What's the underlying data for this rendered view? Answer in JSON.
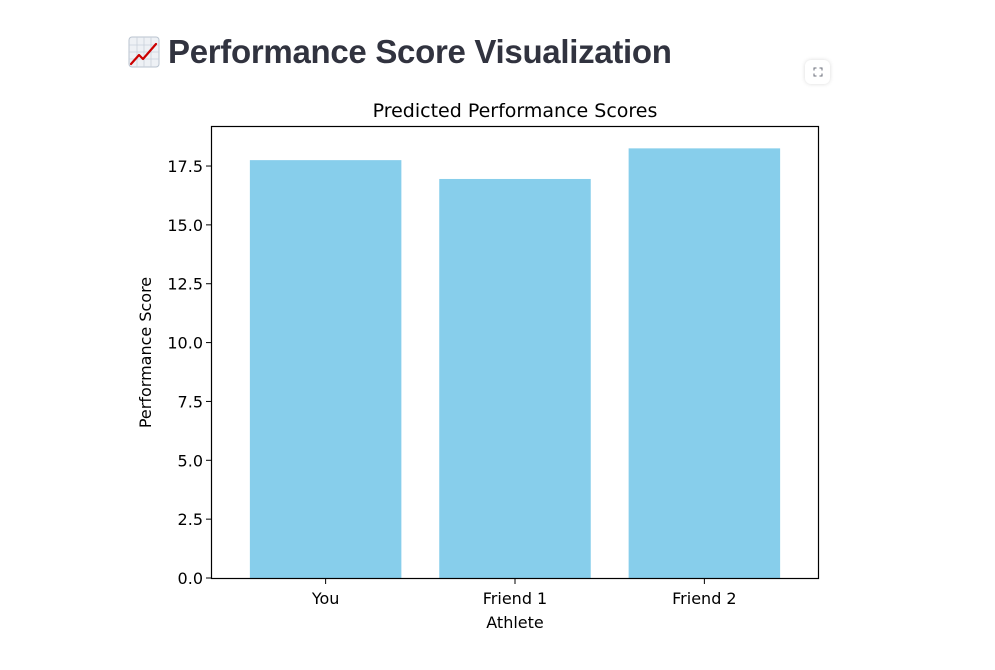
{
  "header": {
    "title": "Performance Score Visualization",
    "icon": "chart-increasing-icon"
  },
  "toolbar": {
    "fullscreen_icon": "fullscreen-icon"
  },
  "colors": {
    "bar": "#87ceeb",
    "title_text": "#31333f",
    "icon_line": "#cc0000"
  },
  "chart_data": {
    "type": "bar",
    "title": "Predicted Performance Scores",
    "xlabel": "Athlete",
    "ylabel": "Performance Score",
    "categories": [
      "You",
      "Friend 1",
      "Friend 2"
    ],
    "values": [
      17.75,
      16.95,
      18.25
    ],
    "ylim": [
      0,
      19.2
    ],
    "yticks": [
      "0.0",
      "2.5",
      "5.0",
      "7.5",
      "10.0",
      "12.5",
      "15.0",
      "17.5"
    ],
    "grid": false,
    "legend": false
  }
}
